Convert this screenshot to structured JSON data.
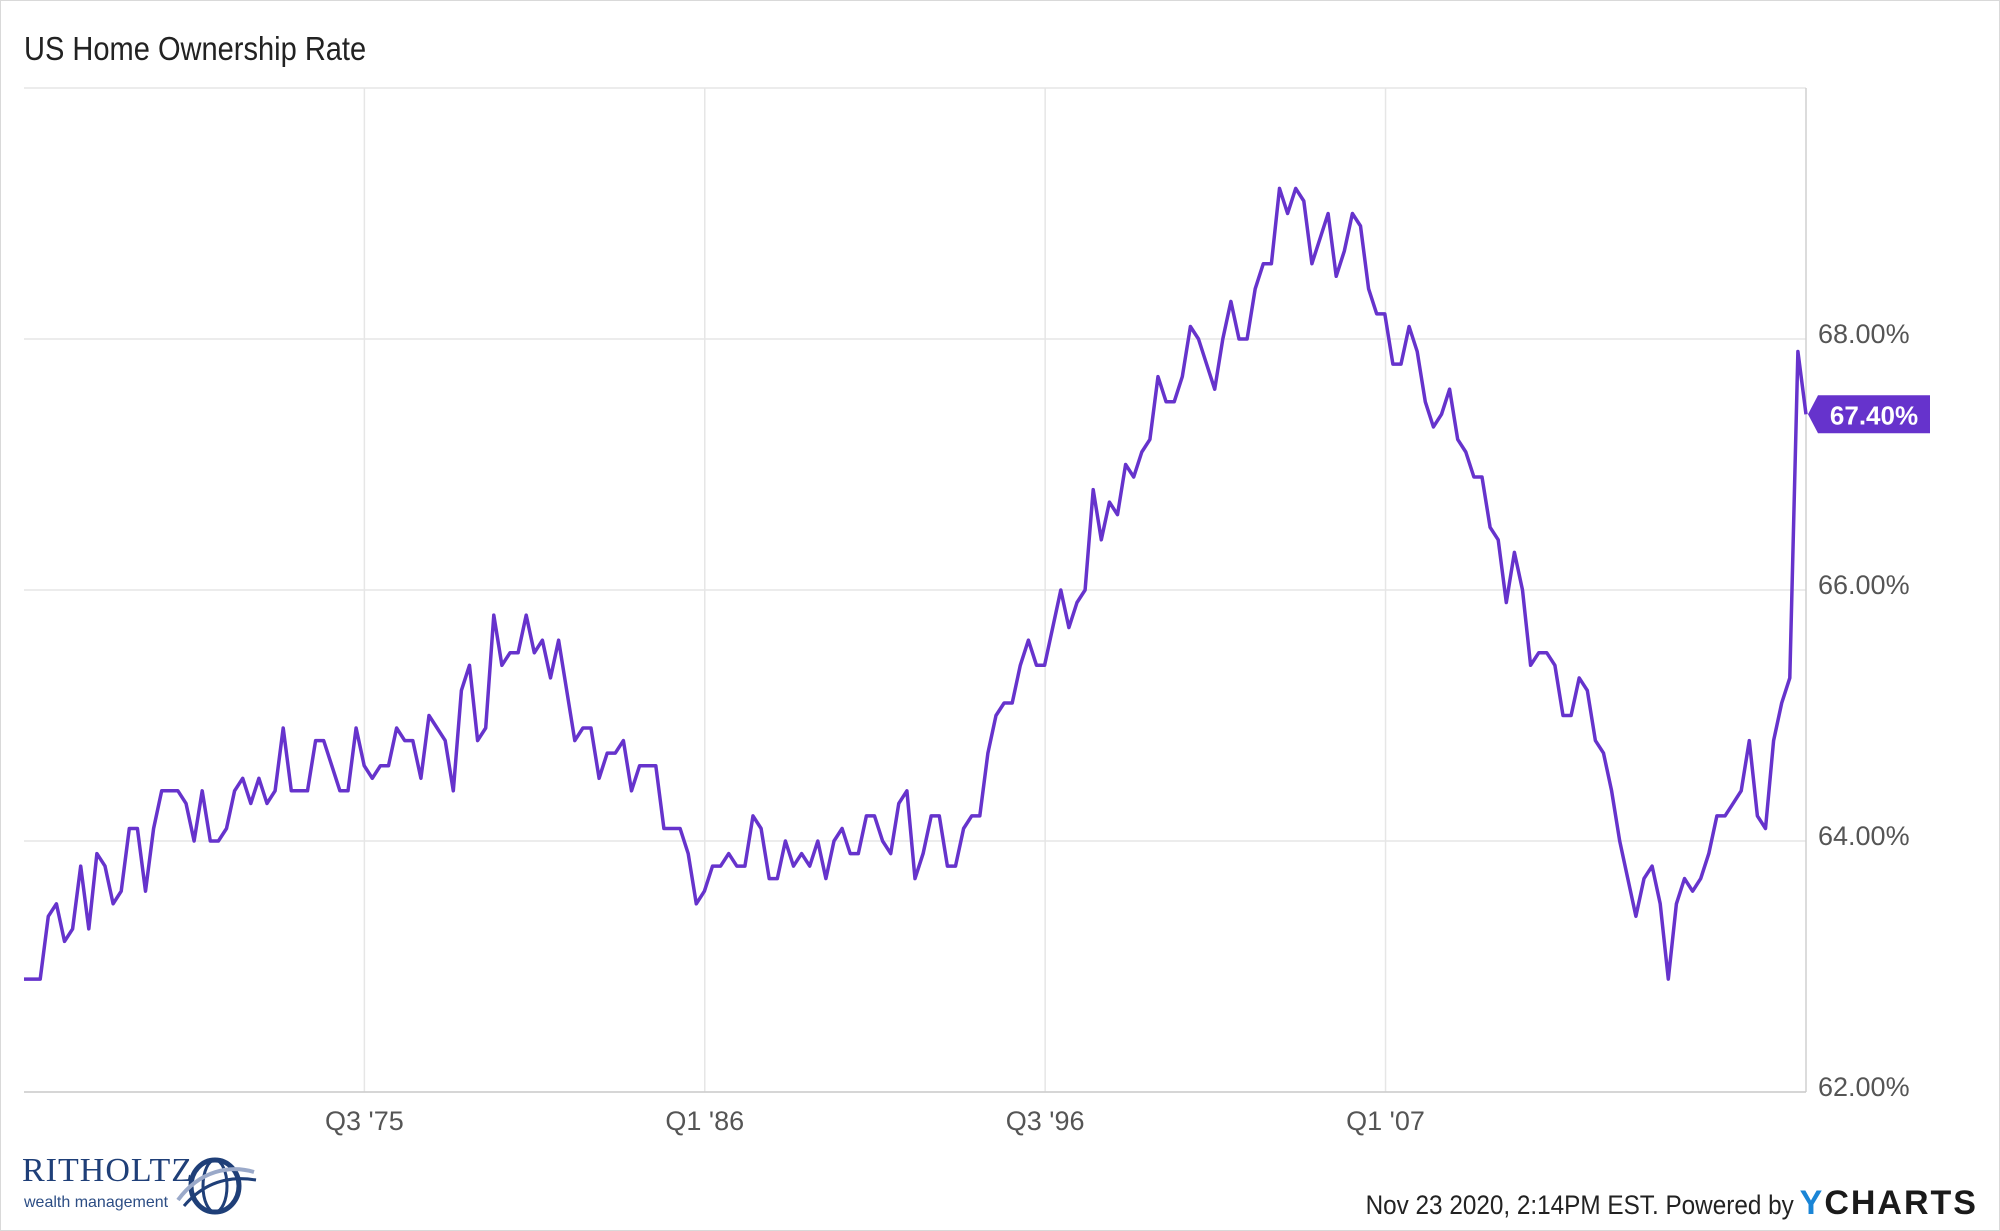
{
  "chart_data": {
    "type": "line",
    "title": "US Home Ownership Rate",
    "series": [
      {
        "values": [
          62.9,
          62.9,
          62.9,
          63.4,
          63.5,
          63.2,
          63.3,
          63.8,
          63.3,
          63.9,
          63.8,
          63.5,
          63.6,
          64.1,
          64.1,
          63.6,
          64.1,
          64.4,
          64.4,
          64.4,
          64.3,
          64.0,
          64.4,
          64.0,
          64.0,
          64.1,
          64.4,
          64.5,
          64.3,
          64.5,
          64.3,
          64.4,
          64.9,
          64.4,
          64.4,
          64.4,
          64.8,
          64.8,
          64.6,
          64.4,
          64.4,
          64.9,
          64.6,
          64.5,
          64.6,
          64.6,
          64.9,
          64.8,
          64.8,
          64.5,
          65.0,
          64.9,
          64.8,
          64.4,
          65.2,
          65.4,
          64.8,
          64.9,
          65.8,
          65.4,
          65.5,
          65.5,
          65.8,
          65.5,
          65.6,
          65.3,
          65.6,
          65.2,
          64.8,
          64.9,
          64.9,
          64.5,
          64.7,
          64.7,
          64.8,
          64.4,
          64.6,
          64.6,
          64.6,
          64.1,
          64.1,
          64.1,
          63.9,
          63.5,
          63.6,
          63.8,
          63.8,
          63.9,
          63.8,
          63.8,
          64.2,
          64.1,
          63.7,
          63.7,
          64.0,
          63.8,
          63.9,
          63.8,
          64.0,
          63.7,
          64.0,
          64.1,
          63.9,
          63.9,
          64.2,
          64.2,
          64.0,
          63.9,
          64.3,
          64.4,
          63.7,
          63.9,
          64.2,
          64.2,
          63.8,
          63.8,
          64.1,
          64.2,
          64.2,
          64.7,
          65.0,
          65.1,
          65.1,
          65.4,
          65.6,
          65.4,
          65.4,
          65.7,
          66.0,
          65.7,
          65.9,
          66.0,
          66.8,
          66.4,
          66.7,
          66.6,
          67.0,
          66.9,
          67.1,
          67.2,
          67.7,
          67.5,
          67.5,
          67.7,
          68.1,
          68.0,
          67.8,
          67.6,
          68.0,
          68.3,
          68.0,
          68.0,
          68.4,
          68.6,
          68.6,
          69.2,
          69.0,
          69.2,
          69.1,
          68.6,
          68.8,
          69.0,
          68.5,
          68.7,
          69.0,
          68.9,
          68.4,
          68.2,
          68.2,
          67.8,
          67.8,
          68.1,
          67.9,
          67.5,
          67.3,
          67.4,
          67.6,
          67.2,
          67.1,
          66.9,
          66.9,
          66.5,
          66.4,
          65.9,
          66.3,
          66.0,
          65.4,
          65.5,
          65.5,
          65.4,
          65.0,
          65.0,
          65.3,
          65.2,
          64.8,
          64.7,
          64.4,
          64.0,
          63.7,
          63.4,
          63.7,
          63.8,
          63.5,
          62.9,
          63.5,
          63.7,
          63.6,
          63.7,
          63.9,
          64.2,
          64.2,
          64.3,
          64.4,
          64.8,
          64.2,
          64.1,
          64.8,
          65.1,
          65.3,
          67.9,
          67.4
        ]
      }
    ],
    "x_ticks": [
      "Q3 '75",
      "Q1 '86",
      "Q3 '96",
      "Q1 '07"
    ],
    "y_ticks": [
      "62.00%",
      "64.00%",
      "66.00%",
      "68.00%"
    ],
    "ylim": [
      62.0,
      70.0
    ],
    "last_value_label": "67.40%",
    "line_color": "#6633cc",
    "grid": true
  },
  "footer": {
    "timestamp": "Nov 23 2020, 2:14PM EST. Powered by",
    "brand_y": "Y",
    "brand_rest": "CHARTS"
  },
  "logo": {
    "name": "RITHOLTZ",
    "subtitle": "wealth management"
  }
}
